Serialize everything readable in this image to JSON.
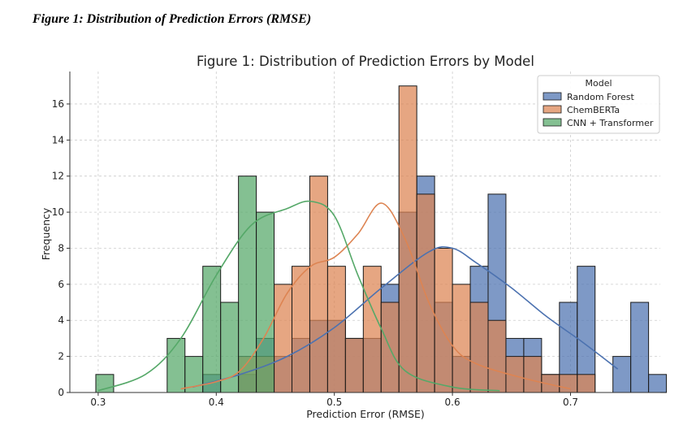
{
  "caption": "Figure 1: Distribution of Prediction Errors (RMSE)",
  "chart_data": {
    "type": "histogram",
    "title": "Figure 1: Distribution of Prediction Errors by Model",
    "xlabel": "Prediction Error (RMSE)",
    "ylabel": "Frequency",
    "xlim": [
      0.276,
      0.776
    ],
    "ylim": [
      0,
      17.8
    ],
    "bin_start": 0.298,
    "bin_width": 0.0151,
    "xticks": [
      0.3,
      0.4,
      0.5,
      0.6,
      0.7
    ],
    "xtick_labels": [
      "0.3",
      "0.4",
      "0.5",
      "0.6",
      "0.7"
    ],
    "yticks": [
      0,
      2,
      4,
      6,
      8,
      10,
      12,
      14,
      16
    ],
    "ytick_labels": [
      "0",
      "2",
      "4",
      "6",
      "8",
      "10",
      "12",
      "14",
      "16"
    ],
    "grid": true,
    "legend_title": "Model",
    "legend_position": "top-right",
    "series": [
      {
        "name": "Random Forest",
        "color": "#4c72b0",
        "counts": [
          0,
          0,
          0,
          0,
          0,
          0,
          1,
          0,
          1,
          3,
          2,
          3,
          4,
          4,
          3,
          3,
          6,
          10,
          12,
          5,
          2,
          7,
          11,
          3,
          3,
          1,
          5,
          7,
          0,
          2,
          5,
          1
        ],
        "kde": [
          [
            0.38,
            0.3
          ],
          [
            0.42,
            1.0
          ],
          [
            0.46,
            2.0
          ],
          [
            0.5,
            3.6
          ],
          [
            0.54,
            5.8
          ],
          [
            0.58,
            7.8
          ],
          [
            0.6,
            8.0
          ],
          [
            0.62,
            7.2
          ],
          [
            0.65,
            5.8
          ],
          [
            0.68,
            4.2
          ],
          [
            0.71,
            2.8
          ],
          [
            0.74,
            1.3
          ]
        ]
      },
      {
        "name": "ChemBERTa",
        "color": "#dd8452",
        "counts": [
          0,
          0,
          0,
          0,
          0,
          0,
          0,
          0,
          2,
          2,
          6,
          7,
          12,
          7,
          3,
          7,
          5,
          17,
          11,
          8,
          6,
          5,
          4,
          2,
          2,
          1,
          1,
          1,
          0,
          0,
          0,
          0
        ],
        "kde": [
          [
            0.37,
            0.2
          ],
          [
            0.4,
            0.6
          ],
          [
            0.42,
            1.2
          ],
          [
            0.44,
            3.0
          ],
          [
            0.46,
            5.5
          ],
          [
            0.48,
            7.0
          ],
          [
            0.5,
            7.5
          ],
          [
            0.52,
            8.8
          ],
          [
            0.54,
            10.5
          ],
          [
            0.56,
            8.5
          ],
          [
            0.58,
            5.0
          ],
          [
            0.6,
            2.6
          ],
          [
            0.62,
            1.6
          ],
          [
            0.66,
            0.8
          ],
          [
            0.7,
            0.2
          ]
        ]
      },
      {
        "name": "CNN + Transformer",
        "color": "#55a868",
        "counts": [
          1,
          0,
          0,
          0,
          3,
          2,
          7,
          5,
          12,
          10,
          0,
          0,
          0,
          0,
          0,
          0,
          0,
          0,
          0,
          0,
          0,
          0,
          0,
          0,
          0,
          0,
          0,
          0,
          0,
          0,
          0,
          0
        ],
        "kde": [
          [
            0.3,
            0.1
          ],
          [
            0.34,
            1.0
          ],
          [
            0.37,
            3.0
          ],
          [
            0.4,
            6.5
          ],
          [
            0.43,
            9.3
          ],
          [
            0.46,
            10.2
          ],
          [
            0.48,
            10.6
          ],
          [
            0.5,
            9.8
          ],
          [
            0.52,
            6.5
          ],
          [
            0.54,
            3.5
          ],
          [
            0.56,
            1.2
          ],
          [
            0.6,
            0.3
          ],
          [
            0.64,
            0.1
          ]
        ]
      }
    ]
  }
}
